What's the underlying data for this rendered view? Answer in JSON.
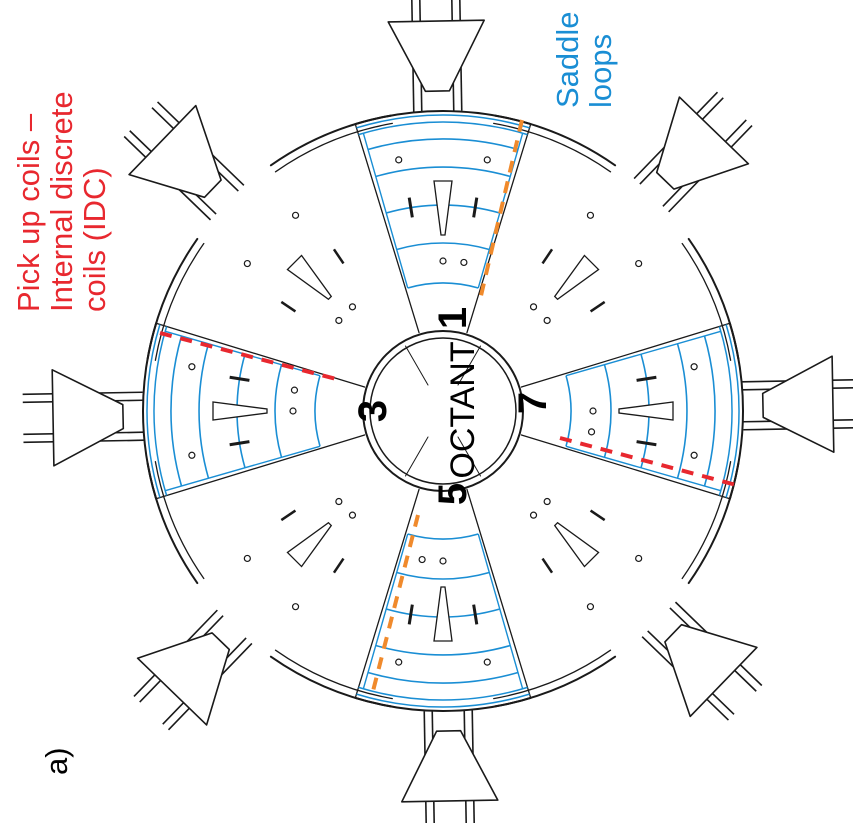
{
  "panel_label": "a)",
  "pickup_label": {
    "line1": "Pick up coils –",
    "line2": "Internal discrete",
    "line3": "coils (IDC)"
  },
  "saddle_label": {
    "line1": "Saddle",
    "line2": "loops"
  },
  "octant_word": "OCTANT",
  "octant_numbers": [
    "1",
    "3",
    "5",
    "7"
  ],
  "colors": {
    "structure": "#1a1a1a",
    "saddle_loops": "#1a8ed4",
    "pickup_coils_idc": "#e8282f",
    "pickup_coils_alt": "#f08a2c"
  }
}
